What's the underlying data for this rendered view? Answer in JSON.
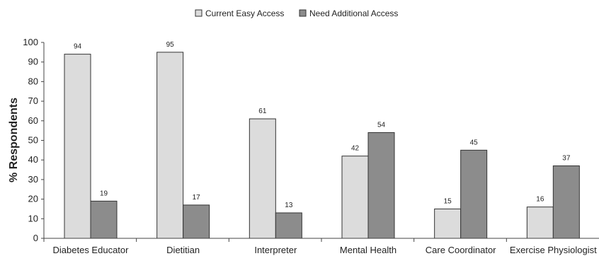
{
  "chart_data": {
    "type": "bar",
    "categories": [
      "Diabetes Educator",
      "Dietitian",
      "Interpreter",
      "Mental Health",
      "Care Coordinator",
      "Exercise Physiologist"
    ],
    "series": [
      {
        "name": "Current Easy Access",
        "values": [
          94,
          95,
          61,
          42,
          15,
          16
        ],
        "color": "#dcdcdc"
      },
      {
        "name": "Need Additional Access",
        "values": [
          19,
          17,
          13,
          54,
          45,
          37
        ],
        "color": "#8c8c8c"
      }
    ],
    "ylabel": "% Respondents",
    "ylim": [
      0,
      100
    ],
    "yticks": [
      0,
      10,
      20,
      30,
      40,
      50,
      60,
      70,
      80,
      90,
      100
    ],
    "grid": false,
    "legend_position": "top-center"
  }
}
